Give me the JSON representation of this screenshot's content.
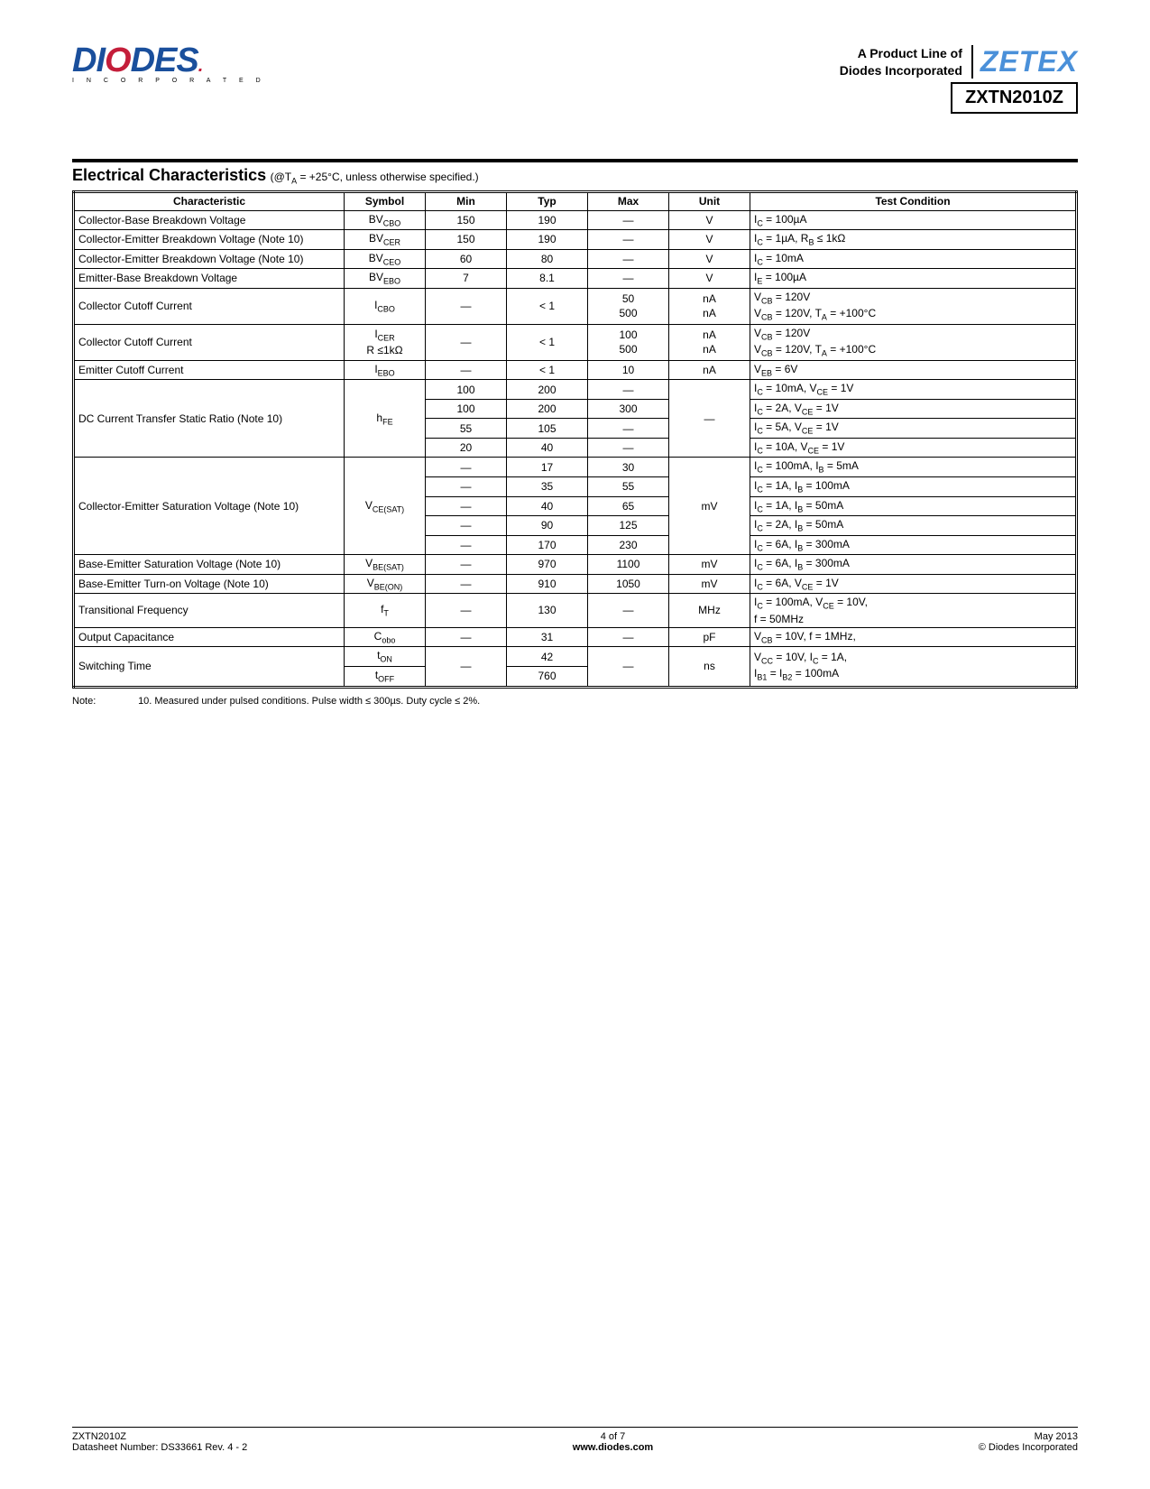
{
  "header": {
    "product_line_l1": "A Product Line of",
    "product_line_l2": "Diodes Incorporated",
    "part_number": "ZXTN2010Z",
    "diodes_logo_text": "DIODES",
    "diodes_logo_sub": "I N C O R P O R A T E D",
    "zetex_logo_text": "ZETEX"
  },
  "section": {
    "title": "Electrical Characteristics",
    "condition": "(@T",
    "condition_sub": "A",
    "condition_rest": " = +25°C, unless otherwise specified.)"
  },
  "table": {
    "headers": [
      "Characteristic",
      "Symbol",
      "Min",
      "Typ",
      "Max",
      "Unit",
      "Test Condition"
    ]
  },
  "rows": {
    "r1": {
      "char": "Collector-Base Breakdown Voltage",
      "sym": "BV",
      "symsub": "CBO",
      "min": "150",
      "typ": "190",
      "max": "—",
      "unit": "V",
      "cond": "I<sub>C</sub> = 100µA"
    },
    "r2": {
      "char": "Collector-Emitter Breakdown Voltage (Note 10)",
      "sym": "BV",
      "symsub": "CER",
      "min": "150",
      "typ": "190",
      "max": "—",
      "unit": "V",
      "cond": "I<sub>C</sub> = 1µA, R<sub>B</sub> ≤ 1kΩ"
    },
    "r3": {
      "char": "Collector-Emitter Breakdown Voltage (Note 10)",
      "sym": "BV",
      "symsub": "CEO",
      "min": "60",
      "typ": "80",
      "max": "—",
      "unit": "V",
      "cond": "I<sub>C</sub> = 10mA"
    },
    "r4": {
      "char": "Emitter-Base Breakdown Voltage",
      "sym": "BV",
      "symsub": "EBO",
      "min": "7",
      "typ": "8.1",
      "max": "—",
      "unit": "V",
      "cond": "I<sub>E</sub> = 100µA"
    },
    "r5": {
      "char": "Collector Cutoff Current",
      "sym": "I",
      "symsub": "CBO",
      "min": "—",
      "typ": "< 1",
      "max": "50<br>500",
      "unit": "nA<br>nA",
      "cond": "V<sub>CB</sub> = 120V<br>V<sub>CB</sub> = 120V, T<sub>A</sub> = +100°C"
    },
    "r6": {
      "char": "Collector Cutoff Current",
      "sym": "I<sub>CER</sub><br>R ≤1kΩ",
      "symsub": "",
      "min": "—",
      "typ": "< 1",
      "max": "100<br>500",
      "unit": "nA<br>nA",
      "cond": "V<sub>CB</sub> = 120V<br>V<sub>CB</sub> = 120V, T<sub>A</sub> = +100°C"
    },
    "r7": {
      "char": "Emitter Cutoff Current",
      "sym": "I",
      "symsub": "EBO",
      "min": "—",
      "typ": "< 1",
      "max": "10",
      "unit": "nA",
      "cond": "V<sub>EB</sub> = 6V"
    },
    "hfe": {
      "char": "DC Current Transfer Static Ratio (Note 10)",
      "sym": "h",
      "symsub": "FE",
      "unit": "—",
      "sub": [
        {
          "min": "100",
          "typ": "200",
          "max": "—",
          "cond": "I<sub>C</sub> = 10mA, V<sub>CE</sub> = 1V"
        },
        {
          "min": "100",
          "typ": "200",
          "max": "300",
          "cond": "I<sub>C</sub> = 2A, V<sub>CE</sub> = 1V"
        },
        {
          "min": "55",
          "typ": "105",
          "max": "—",
          "cond": "I<sub>C</sub> = 5A, V<sub>CE</sub> = 1V"
        },
        {
          "min": "20",
          "typ": "40",
          "max": "—",
          "cond": "I<sub>C</sub> = 10A, V<sub>CE</sub> = 1V"
        }
      ]
    },
    "vcesat": {
      "char": "Collector-Emitter Saturation Voltage (Note 10)",
      "sym": "V",
      "symsub": "CE(SAT)",
      "unit": "mV",
      "sub": [
        {
          "min": "—",
          "typ": "17",
          "max": "30",
          "cond": "I<sub>C</sub> = 100mA, I<sub>B</sub> = 5mA"
        },
        {
          "min": "—",
          "typ": "35",
          "max": "55",
          "cond": "I<sub>C</sub> = 1A, I<sub>B</sub> = 100mA"
        },
        {
          "min": "—",
          "typ": "40",
          "max": "65",
          "cond": "I<sub>C</sub> = 1A, I<sub>B</sub> = 50mA"
        },
        {
          "min": "—",
          "typ": "90",
          "max": "125",
          "cond": "I<sub>C</sub> = 2A, I<sub>B</sub> = 50mA"
        },
        {
          "min": "—",
          "typ": "170",
          "max": "230",
          "cond": "I<sub>C</sub> = 6A, I<sub>B</sub> = 300mA"
        }
      ]
    },
    "r8": {
      "char": "Base-Emitter Saturation Voltage (Note 10)",
      "sym": "V",
      "symsub": "BE(SAT)",
      "min": "—",
      "typ": "970",
      "max": "1100",
      "unit": "mV",
      "cond": "I<sub>C</sub> = 6A, I<sub>B</sub> = 300mA"
    },
    "r9": {
      "char": "Base-Emitter Turn-on Voltage (Note 10)",
      "sym": "V",
      "symsub": "BE(ON)",
      "min": "—",
      "typ": "910",
      "max": "1050",
      "unit": "mV",
      "cond": "I<sub>C</sub> = 6A, V<sub>CE</sub> = 1V"
    },
    "r10": {
      "char": "Transitional Frequency",
      "sym": "f",
      "symsub": "T",
      "min": "—",
      "typ": "130",
      "max": "—",
      "unit": "MHz",
      "cond": "I<sub>C</sub> = 100mA, V<sub>CE</sub> = 10V,<br>f = 50MHz"
    },
    "r11": {
      "char": "Output Capacitance",
      "sym": "C",
      "symsub": "obo",
      "min": "—",
      "typ": "31",
      "max": "—",
      "unit": "pF",
      "cond": "V<sub>CB</sub> = 10V, f = 1MHz,"
    },
    "sw": {
      "char": "Switching Time",
      "min": "—",
      "max": "—",
      "unit": "ns",
      "cond": "V<sub>CC</sub> = 10V, I<sub>C</sub> = 1A,<br>I<sub>B1</sub> = I<sub>B2</sub> = 100mA",
      "sub": [
        {
          "sym": "t",
          "symsub": "ON",
          "typ": "42"
        },
        {
          "sym": "t",
          "symsub": "OFF",
          "typ": "760"
        }
      ]
    }
  },
  "note": {
    "label": "Note:",
    "text": "10. Measured under pulsed conditions. Pulse width ≤ 300µs. Duty cycle ≤ 2%."
  },
  "footer": {
    "left_l1": "ZXTN2010Z",
    "left_l2": "Datasheet Number: DS33661 Rev. 4 - 2",
    "mid_l1": "4 of 7",
    "mid_l2": "www.diodes.com",
    "right_l1": "May 2013",
    "right_l2": "© Diodes Incorporated"
  }
}
